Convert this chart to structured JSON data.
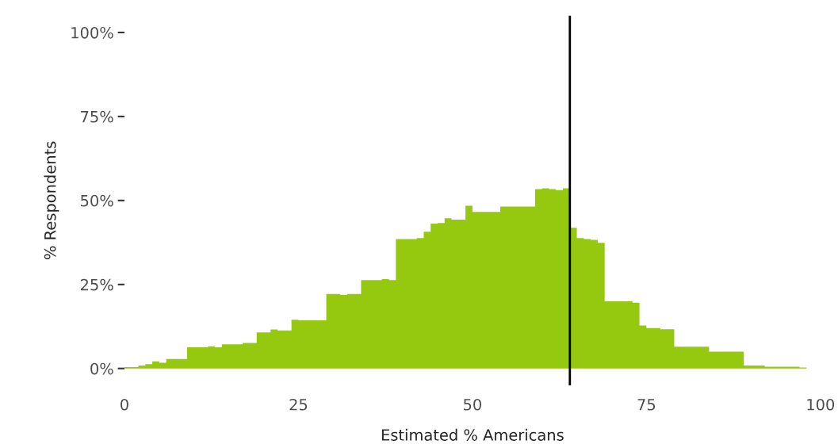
{
  "chart_data": {
    "type": "histogram",
    "xlabel": "Estimated % Americans",
    "ylabel": "% Respondents",
    "bins": [
      0,
      2,
      3,
      4,
      5,
      6,
      9,
      12,
      13,
      14,
      17,
      19,
      21,
      22,
      24,
      25,
      29,
      31,
      32,
      34,
      37,
      38,
      39,
      42,
      43,
      44,
      45,
      46,
      47,
      49,
      50,
      54,
      59,
      60,
      61,
      62,
      63,
      64,
      65,
      66,
      67,
      68,
      69,
      73,
      74,
      75,
      77,
      79,
      84,
      89,
      92,
      97,
      98
    ],
    "values": [
      0.4,
      0.9,
      1.3,
      2.1,
      1.7,
      2.8,
      6.3,
      6.6,
      6.3,
      7.2,
      7.6,
      10.7,
      11.6,
      11.3,
      14.5,
      14.3,
      22.2,
      21.9,
      22.2,
      26.3,
      26.6,
      26.3,
      38.5,
      38.8,
      40.7,
      43.1,
      43.3,
      44.7,
      44.3,
      48.4,
      46.6,
      48.2,
      53.4,
      53.6,
      53.4,
      53.1,
      53.6,
      41.9,
      38.8,
      38.5,
      38.3,
      37.4,
      20.0,
      19.6,
      12.8,
      12.0,
      11.7,
      6.5,
      5.0,
      0.9,
      0.5,
      0.3
    ],
    "color": "#94c90f",
    "xlim": [
      0,
      100
    ],
    "ylim": [
      -5,
      105
    ],
    "xticks": [
      0,
      25,
      50,
      75,
      100
    ],
    "yticks": [
      {
        "value": 0,
        "label": "0%"
      },
      {
        "value": 25,
        "label": "25%"
      },
      {
        "value": 50,
        "label": "50%"
      },
      {
        "value": 75,
        "label": "75%"
      },
      {
        "value": 100,
        "label": "100%"
      }
    ],
    "ref_lines": [
      {
        "axis": "x",
        "value": 64,
        "label": null,
        "color": "#000000"
      }
    ],
    "grid": false
  }
}
